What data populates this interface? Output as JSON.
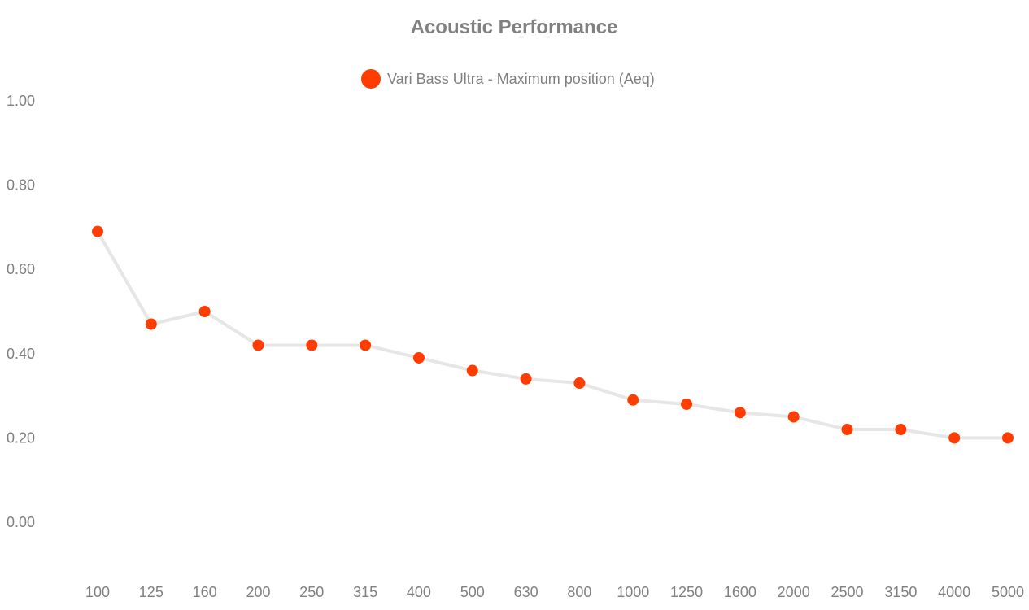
{
  "chart_data": {
    "type": "line",
    "title": "Acoustic Performance",
    "xlabel": "",
    "ylabel": "",
    "categories": [
      "100",
      "125",
      "160",
      "200",
      "250",
      "315",
      "400",
      "500",
      "630",
      "800",
      "1000",
      "1250",
      "1600",
      "2000",
      "2500",
      "3150",
      "4000",
      "5000"
    ],
    "series": [
      {
        "name": "Vari Bass Ultra - Maximum position (Aeq)",
        "values": [
          0.69,
          0.47,
          0.5,
          0.42,
          0.42,
          0.42,
          0.39,
          0.36,
          0.34,
          0.33,
          0.29,
          0.28,
          0.26,
          0.25,
          0.22,
          0.22,
          0.2,
          0.2
        ],
        "marker_color": "#ff3d00",
        "line_color": "#e6e6e6"
      }
    ],
    "ylim": [
      0,
      1
    ],
    "yticks": [
      "0.00",
      "0.20",
      "0.40",
      "0.60",
      "0.80",
      "1.00"
    ],
    "grid": false,
    "legend_position": "top-center"
  }
}
